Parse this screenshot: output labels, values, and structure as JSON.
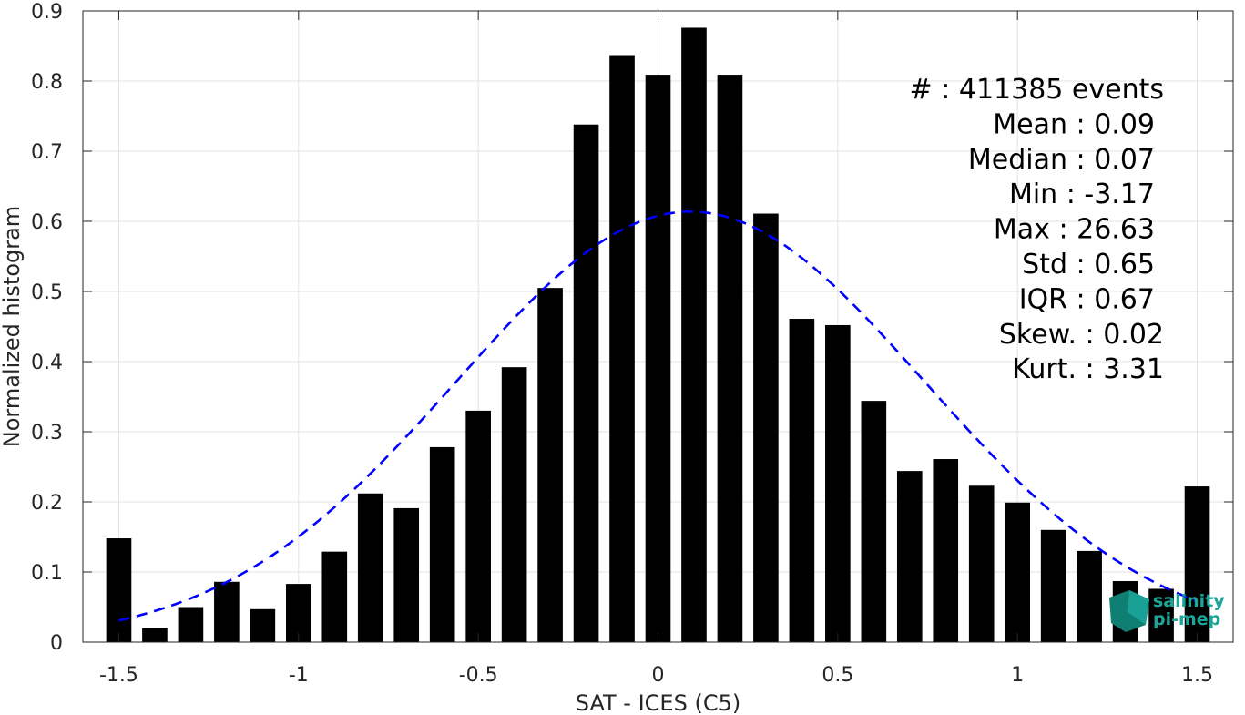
{
  "chart_data": {
    "type": "bar",
    "xlabel": "SAT - ICES (C5)",
    "ylabel": "Normalized histogram",
    "xlim": [
      -1.6,
      1.6
    ],
    "ylim": [
      0,
      0.9
    ],
    "grid": true,
    "xticks": [
      -1.5,
      -1,
      -0.5,
      0,
      0.5,
      1,
      1.5
    ],
    "xtick_labels": [
      "-1.5",
      "-1",
      "-0.5",
      "0",
      "0.5",
      "1",
      "1.5"
    ],
    "yticks": [
      0,
      0.1,
      0.2,
      0.3,
      0.4,
      0.5,
      0.6,
      0.7,
      0.8,
      0.9
    ],
    "ytick_labels": [
      "0",
      "0.1",
      "0.2",
      "0.3",
      "0.4",
      "0.5",
      "0.6",
      "0.7",
      "0.8",
      "0.9"
    ],
    "bin_centers": [
      -1.5,
      -1.4,
      -1.3,
      -1.2,
      -1.1,
      -1.0,
      -0.9,
      -0.8,
      -0.7,
      -0.6,
      -0.5,
      -0.4,
      -0.3,
      -0.2,
      -0.1,
      0.0,
      0.1,
      0.2,
      0.3,
      0.4,
      0.5,
      0.6,
      0.7,
      0.8,
      0.9,
      1.0,
      1.1,
      1.2,
      1.3,
      1.4,
      1.5
    ],
    "values": [
      0.148,
      0.02,
      0.05,
      0.086,
      0.047,
      0.083,
      0.129,
      0.212,
      0.191,
      0.278,
      0.33,
      0.392,
      0.505,
      0.738,
      0.837,
      0.809,
      0.876,
      0.809,
      0.611,
      0.461,
      0.452,
      0.344,
      0.244,
      0.261,
      0.223,
      0.199,
      0.16,
      0.13,
      0.087,
      0.076,
      0.222
    ],
    "bar_color": "#000000",
    "fit_curve": {
      "style": "dashed",
      "color": "#0000ff",
      "mean": 0.09,
      "std": 0.65,
      "x_range": [
        -1.5,
        1.5
      ]
    },
    "stats_legend": {
      "position": "top-right",
      "lines": [
        "#  : 411385 events",
        "Mean : 0.09",
        "Median : 0.07",
        "Min : -3.17",
        "Max : 26.63",
        "Std : 0.65",
        "IQR : 0.67",
        "Skew. : 0.02",
        "Kurt. : 3.31"
      ]
    }
  },
  "logo": {
    "line1": "salinity",
    "line2": "pi-mep",
    "color": "#1aa79a"
  }
}
